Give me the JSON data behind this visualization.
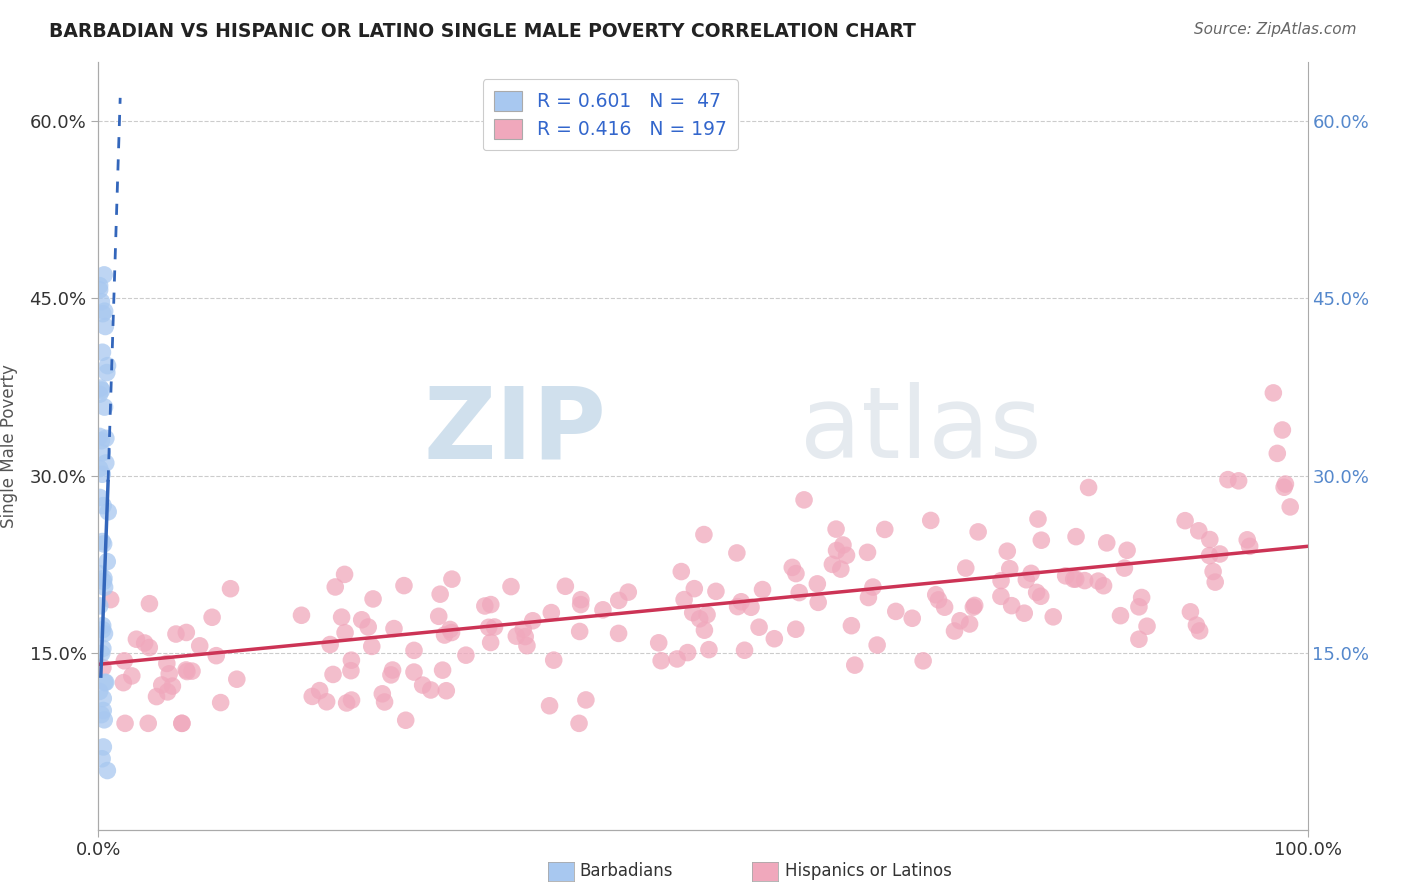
{
  "title": "BARBADIAN VS HISPANIC OR LATINO SINGLE MALE POVERTY CORRELATION CHART",
  "source_text": "Source: ZipAtlas.com",
  "ylabel_label": "Single Male Poverty",
  "legend_label1": "Barbadians",
  "legend_label2": "Hispanics or Latinos",
  "legend_R1": "R = 0.601",
  "legend_N1": "N =  47",
  "legend_R2": "R = 0.416",
  "legend_N2": "N = 197",
  "blue_color": "#a8c8f0",
  "pink_color": "#f0a8bc",
  "blue_line_color": "#3366bb",
  "pink_line_color": "#cc3355",
  "background_color": "#ffffff",
  "grid_color": "#cccccc",
  "title_color": "#222222",
  "source_color": "#666666",
  "watermark_color": "#c5d8ed",
  "xlim": [
    0.0,
    1.0
  ],
  "ylim": [
    0.0,
    0.65
  ],
  "yticks": [
    0.15,
    0.3,
    0.45,
    0.6
  ],
  "ytick_labels": [
    "15.0%",
    "30.0%",
    "45.0%",
    "60.0%"
  ],
  "xticks": [
    0.0,
    1.0
  ],
  "xtick_labels": [
    "0.0%",
    "100.0%"
  ]
}
